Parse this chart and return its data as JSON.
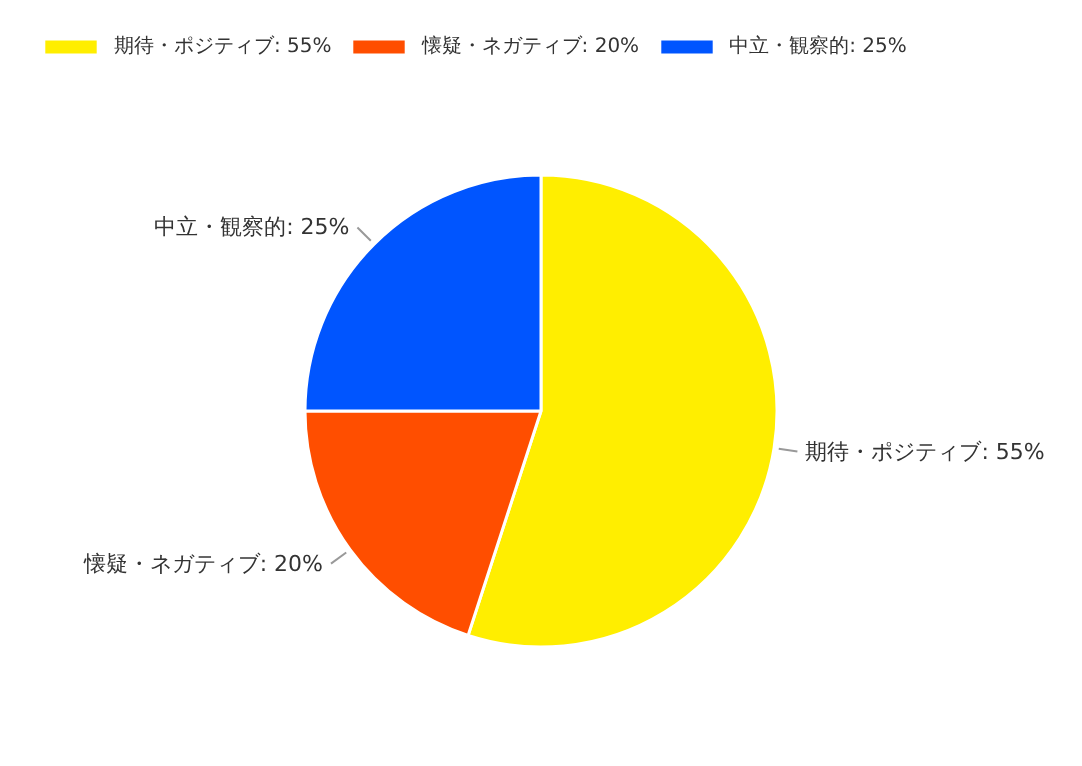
{
  "chart_data": {
    "type": "pie",
    "categories": [
      "期待・ポジティブ: 55%",
      "懐疑・ネガティブ: 20%",
      "中立・観察的: 25%"
    ],
    "values": [
      55,
      20,
      25
    ],
    "colors": [
      "#ffee00",
      "#ff4e00",
      "#0055ff"
    ],
    "legend": "top left"
  }
}
